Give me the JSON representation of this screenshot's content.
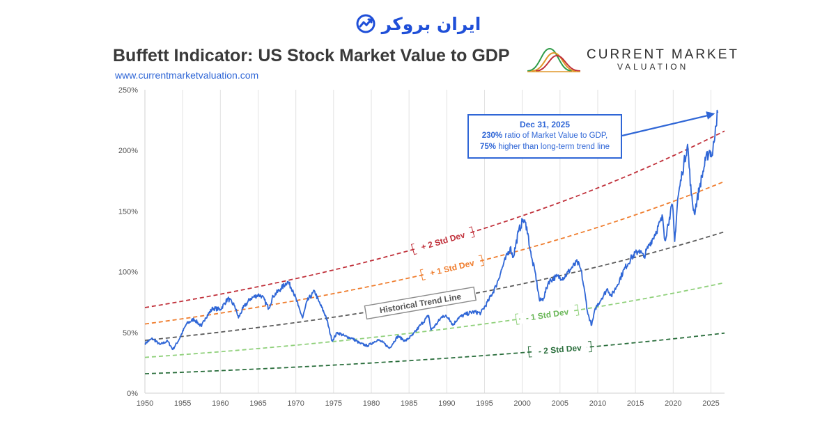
{
  "brand": {
    "name": "ایران بروکر"
  },
  "header": {
    "title": "Buffett Indicator: US Stock Market Value to GDP",
    "url": "www.currentmarketvaluation.com"
  },
  "logo": {
    "line1": "CURRENT MARKET",
    "line2": "VALUATION"
  },
  "callout": {
    "date": "Dec 31, 2025",
    "value_text": "230%",
    "line1_rest": " ratio of Market Value to GDP,",
    "pct_text": "75%",
    "line2_rest": " higher than long-term trend line"
  },
  "colors": {
    "series": "#2f66d6",
    "plus2": "#c0303a",
    "plus1": "#ef7d2e",
    "trend": "#5a5a5a",
    "minus1": "#8fd07a",
    "minus2": "#2a6e3c"
  },
  "chart_data": {
    "type": "line",
    "xlim": [
      1950,
      2026.8
    ],
    "ylim": [
      0,
      250
    ],
    "x_ticks": [
      1950,
      1955,
      1960,
      1965,
      1970,
      1975,
      1980,
      1985,
      1990,
      1995,
      2000,
      2005,
      2010,
      2015,
      2020,
      2025
    ],
    "y_ticks": [
      0,
      50,
      100,
      150,
      200,
      250
    ],
    "y_tick_labels": [
      "0%",
      "50%",
      "100%",
      "150%",
      "200%",
      "250%"
    ],
    "grid": "vertical",
    "bands": [
      {
        "name": "+ 2 Std Dev",
        "y1950": 70.5,
        "y2026": 216,
        "color": "#c0303a",
        "label_x": 1989.5
      },
      {
        "name": "+ 1 Std Dev",
        "y1950": 57,
        "y2026": 174.5,
        "color": "#ef7d2e",
        "label_x": 1990.7
      },
      {
        "name": "Historical Trend Line",
        "y1950": 43.5,
        "y2026": 133,
        "color": "#5a5a5a",
        "label_x": 1986.5,
        "boxed": true
      },
      {
        "name": "- 1 Std Dev",
        "y1950": 29.5,
        "y2026": 91,
        "color": "#8fd07a",
        "label_x": 2003.3
      },
      {
        "name": "- 2 Std Dev",
        "y1950": 16,
        "y2026": 49.5,
        "color": "#2a6e3c",
        "label_x": 2005.0
      }
    ],
    "series": [
      {
        "x": [
          1950,
          1951,
          1952,
          1953,
          1953.7,
          1954.5,
          1955.5,
          1956.5,
          1957.5,
          1958,
          1959,
          1960,
          1961,
          1961.9,
          1962.4,
          1963,
          1964,
          1965,
          1965.5,
          1966.4,
          1967,
          1968,
          1968.9,
          1969.6,
          1970.3,
          1970.9,
          1971.5,
          1972.5,
          1973,
          1974,
          1974.8,
          1975.5,
          1976.5,
          1977.5,
          1978.5,
          1979.5,
          1980.8,
          1981.5,
          1982.4,
          1983.5,
          1984.5,
          1985.5,
          1986.5,
          1987.6,
          1987.9,
          1988.5,
          1989.5,
          1990.3,
          1990.8,
          1991.5,
          1992.5,
          1993.5,
          1994.5,
          1995.5,
          1996.5,
          1997.5,
          1998.4,
          1998.8,
          1999.5,
          2000.1,
          2000.6,
          2001.2,
          2001.7,
          2002.3,
          2002.8,
          2003.5,
          2004.5,
          2005.5,
          2006.5,
          2007.3,
          2007.8,
          2008.4,
          2008.7,
          2009.2,
          2009.7,
          2010.5,
          2011.3,
          2011.8,
          2012.5,
          2013.5,
          2014.5,
          2015.5,
          2016.1,
          2016.8,
          2017.5,
          2018.6,
          2018.9,
          2019.5,
          2019.9,
          2020.2,
          2020.6,
          2021.2,
          2021.9,
          2022.4,
          2022.8,
          2023.5,
          2024.3,
          2024.8,
          2025.2,
          2025.6,
          2025.9
        ],
        "y": [
          41,
          45,
          40,
          43,
          36,
          44,
          57,
          61,
          55,
          62,
          70,
          69,
          78,
          72,
          62,
          70,
          78,
          81,
          80,
          70,
          80,
          86,
          92,
          85,
          72,
          62,
          76,
          84,
          76,
          63,
          43,
          50,
          47,
          45,
          41,
          39,
          44,
          42,
          37,
          47,
          43,
          48,
          56,
          64,
          52,
          56,
          64,
          62,
          56,
          62,
          65,
          67,
          66,
          76,
          88,
          106,
          120,
          112,
          133,
          143,
          137,
          112,
          100,
          76,
          78,
          92,
          96,
          95,
          103,
          108,
          101,
          78,
          65,
          56,
          70,
          78,
          86,
          80,
          88,
          102,
          112,
          118,
          112,
          122,
          130,
          145,
          126,
          145,
          155,
          125,
          160,
          182,
          205,
          163,
          148,
          170,
          192,
          200,
          196,
          220,
          231
        ]
      }
    ]
  }
}
